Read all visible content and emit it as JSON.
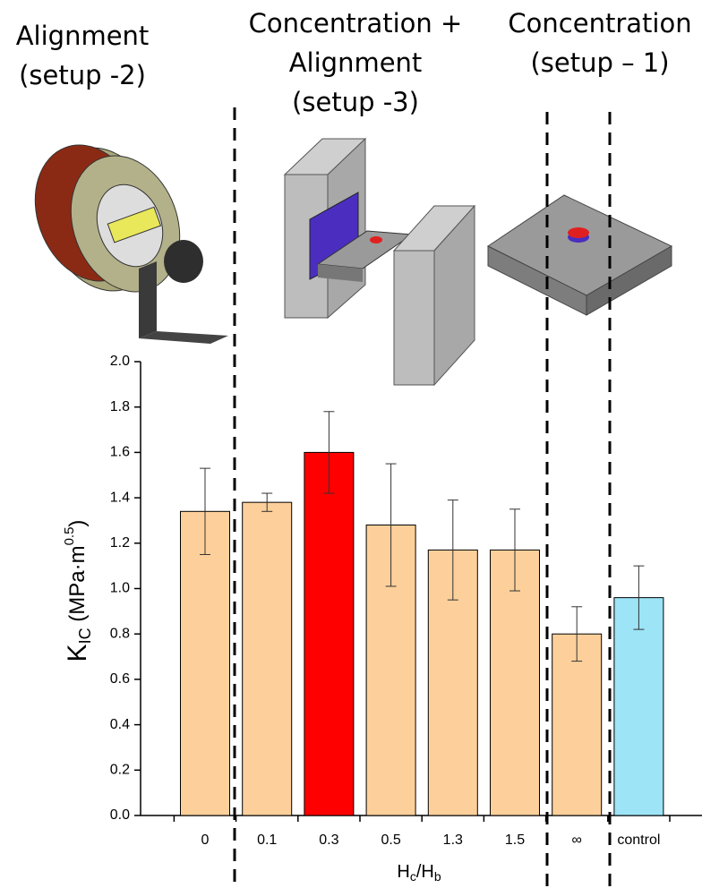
{
  "chart_data": {
    "type": "bar",
    "section_labels": [
      [
        "Alignment",
        "(setup -2)"
      ],
      [
        "Concentration +",
        "Alignment",
        "(setup -3)"
      ],
      [
        "Concentration",
        "(setup – 1)"
      ]
    ],
    "y_label": {
      "symbol": "K",
      "subscript": "IC",
      "unit": "(MPa·m",
      "superscript": "0.5",
      "close": ")"
    },
    "x_label": {
      "symbol": "H",
      "subscript": "c",
      "divider": "/H",
      "subscript2": "b"
    },
    "categories": [
      "0",
      "0.1",
      "0.3",
      "0.5",
      "1.3",
      "1.5",
      "∞",
      "control"
    ],
    "series": [
      {
        "values": [
          1.34,
          1.38,
          1.6,
          1.28,
          1.17,
          1.17,
          0.8,
          0.96
        ],
        "errors": [
          0.19,
          0.04,
          0.18,
          0.27,
          0.22,
          0.18,
          0.12,
          0.14
        ],
        "colors": [
          "#fdd09b",
          "#fdd09b",
          "#ff0000",
          "#fdd09b",
          "#fdd09b",
          "#fdd09b",
          "#fdd09b",
          "#9ce4f6"
        ]
      }
    ],
    "ylim": [
      0,
      2.0
    ],
    "yticks": [
      {
        "value": 0,
        "label": "0.0"
      },
      {
        "value": 0.2,
        "label": "0.2"
      },
      {
        "value": 0.4,
        "label": "0.4"
      },
      {
        "value": 0.6,
        "label": "0.6"
      },
      {
        "value": 0.8,
        "label": "0.8"
      },
      {
        "value": 1.0,
        "label": "1.0"
      },
      {
        "value": 1.2,
        "label": "1.2"
      },
      {
        "value": 1.4,
        "label": "1.4"
      },
      {
        "value": 1.6,
        "label": "1.6"
      },
      {
        "value": 1.8,
        "label": "1.8"
      },
      {
        "value": 2.0,
        "label": "2.0"
      }
    ]
  }
}
